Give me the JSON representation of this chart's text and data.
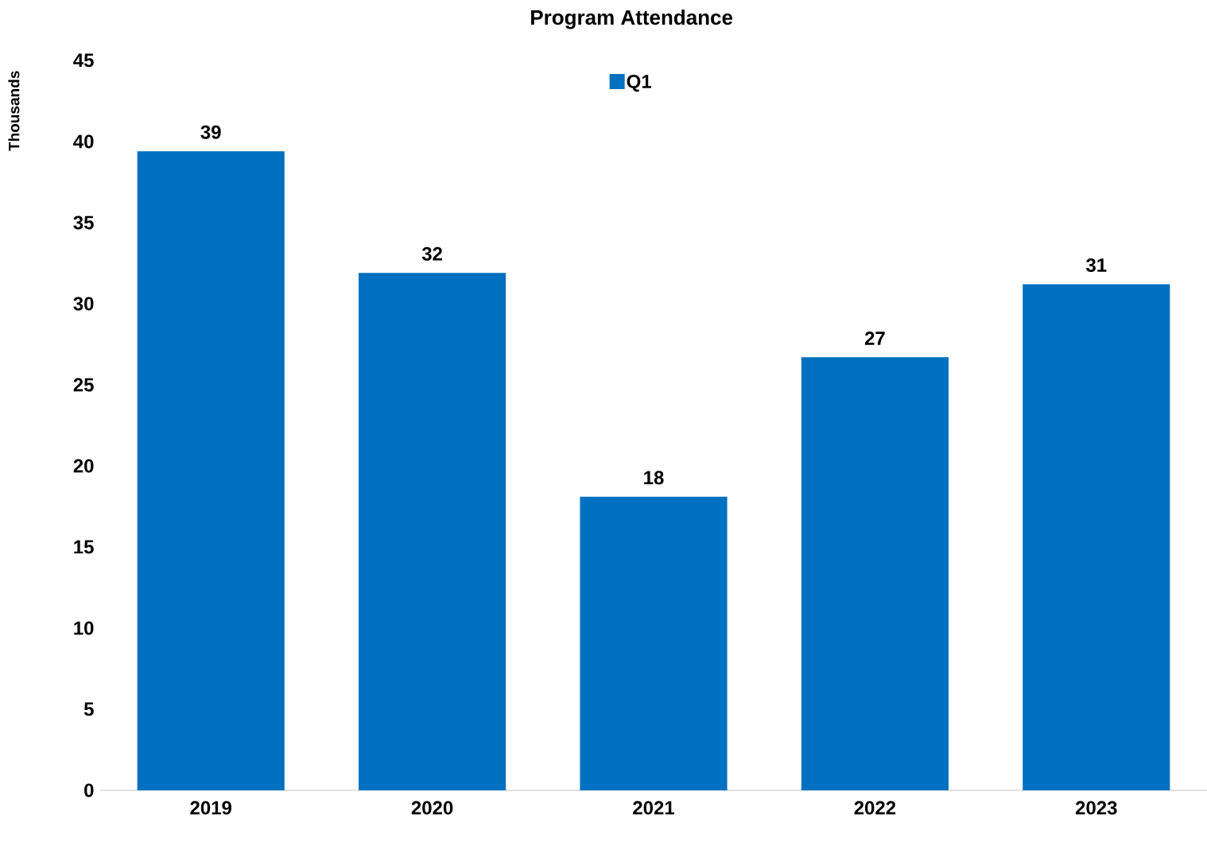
{
  "chart_data": {
    "type": "bar",
    "title": "Program Attendance",
    "ylabel": "Thousands",
    "categories": [
      "2019",
      "2020",
      "2021",
      "2022",
      "2023"
    ],
    "series": [
      {
        "name": "Q1",
        "color": "#0070c0",
        "values": [
          39.4,
          31.9,
          18.1,
          26.7,
          31.2
        ],
        "value_labels": [
          "39",
          "32",
          "18",
          "27",
          "31"
        ]
      }
    ],
    "ylim": [
      0,
      45
    ],
    "yticks": [
      0,
      5,
      10,
      15,
      20,
      25,
      30,
      35,
      40,
      45
    ],
    "grid": false,
    "legend": "top"
  }
}
